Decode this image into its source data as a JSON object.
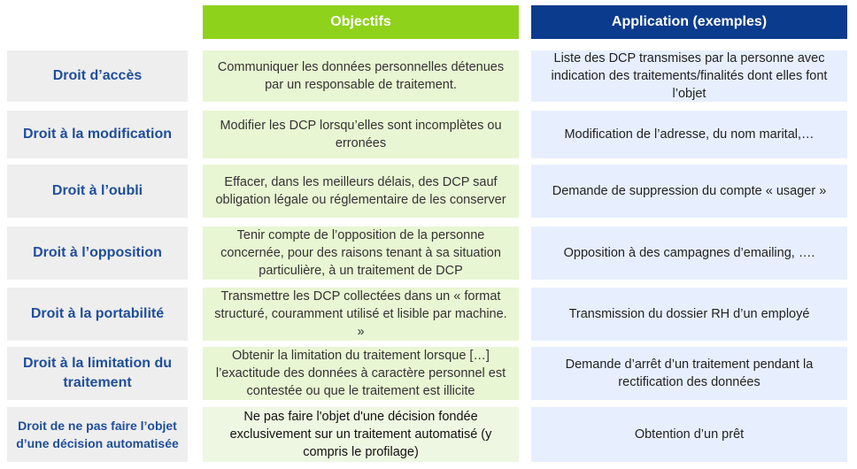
{
  "header": {
    "objectives": "Objectifs",
    "application": "Application (exemples)"
  },
  "rows": [
    {
      "right": "Droit d’accès",
      "objective": "Communiquer les données personnelles détenues par un responsable de traitement.",
      "application": "Liste des DCP transmises par la personne avec indication des traitements/finalités dont elles font l’objet"
    },
    {
      "right": "Droit à la modification",
      "objective": "Modifier les DCP lorsqu’elles sont incomplètes ou erronées",
      "application": "Modification de l’adresse, du nom marital,…"
    },
    {
      "right": "Droit à l’oubli",
      "objective": "Effacer, dans les meilleurs délais, des DCP sauf obligation légale ou réglementaire de les conserver",
      "application": "Demande de suppression du compte « usager »"
    },
    {
      "right": "Droit à l’opposition",
      "objective": "Tenir compte de l’opposition de la personne concernée, pour des raisons tenant à sa situation particulière, à un traitement de DCP",
      "application": "Opposition à des campagnes d’emailing, …."
    },
    {
      "right": "Droit à la portabilité",
      "objective": "Transmettre les DCP collectées dans un « format structuré, couramment utilisé et lisible par machine. »",
      "application": "Transmission du dossier RH d’un employé"
    },
    {
      "right": "Droit à la limitation du traitement",
      "objective": "Obtenir la limitation du traitement lorsque […] l’exactitude des données à caractère personnel est contestée ou que le traitement est illicite",
      "application": "Demande d’arrêt d’un traitement pendant la rectification des données"
    },
    {
      "right": "Droit de ne pas faire l’objet d’une décision automatisée",
      "objective": "Ne pas faire l'objet d'une décision fondée exclusivement sur un traitement automatisé (y compris le profilage)",
      "application": "Obtention d’un prêt"
    }
  ]
}
